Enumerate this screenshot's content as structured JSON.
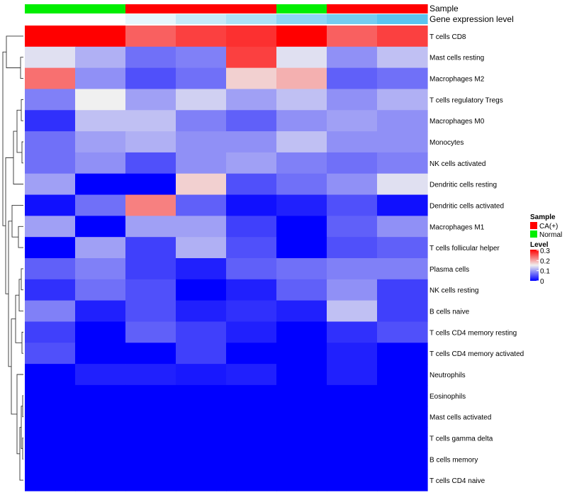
{
  "chart_data": {
    "type": "heatmap",
    "annotation_titles": {
      "sample": "Sample",
      "gene_expression": "Gene expression level"
    },
    "sample_annotation": [
      "Normal",
      "Normal",
      "CA(+)",
      "CA(+)",
      "CA(+)",
      "Normal",
      "CA(+)",
      "CA(+)"
    ],
    "gene_expression_annotation": [
      0.0,
      0.0,
      0.15,
      0.35,
      0.5,
      0.7,
      0.85,
      1.0
    ],
    "rows": [
      "T cells CD8",
      "Mast cells resting",
      "Macrophages M2",
      "T cells regulatory  Tregs",
      "Macrophages M0",
      "Monocytes",
      "NK cells activated",
      "Dendritic cells resting",
      "Dendritic cells activated",
      "Macrophages M1",
      "T cells follicular helper",
      "Plasma cells",
      "NK cells resting",
      "B cells naive",
      "T cells CD4 memory resting",
      "T cells CD4 memory activated",
      "Neutrophils",
      "Eosinophils",
      "Mast cells activated",
      "T cells gamma delta",
      "B cells memory",
      "T cells CD4 naive"
    ],
    "values": [
      [
        0.3,
        0.3,
        0.24,
        0.26,
        0.27,
        0.3,
        0.24,
        0.26
      ],
      [
        0.14,
        0.11,
        0.07,
        0.08,
        0.26,
        0.14,
        0.09,
        0.12
      ],
      [
        0.23,
        0.09,
        0.05,
        0.07,
        0.17,
        0.19,
        0.06,
        0.07
      ],
      [
        0.08,
        0.15,
        0.1,
        0.13,
        0.1,
        0.12,
        0.09,
        0.11
      ],
      [
        0.03,
        0.12,
        0.12,
        0.08,
        0.06,
        0.09,
        0.1,
        0.09
      ],
      [
        0.07,
        0.1,
        0.11,
        0.09,
        0.09,
        0.12,
        0.09,
        0.09
      ],
      [
        0.07,
        0.09,
        0.05,
        0.09,
        0.1,
        0.08,
        0.07,
        0.08
      ],
      [
        0.1,
        0.0,
        0.0,
        0.17,
        0.05,
        0.07,
        0.09,
        0.14
      ],
      [
        0.01,
        0.07,
        0.22,
        0.06,
        0.01,
        0.02,
        0.05,
        0.01
      ],
      [
        0.1,
        0.0,
        0.1,
        0.1,
        0.04,
        0.0,
        0.06,
        0.09
      ],
      [
        0.0,
        0.1,
        0.04,
        0.11,
        0.05,
        0.0,
        0.05,
        0.06
      ],
      [
        0.06,
        0.08,
        0.04,
        0.02,
        0.06,
        0.07,
        0.08,
        0.08
      ],
      [
        0.03,
        0.07,
        0.05,
        0.0,
        0.02,
        0.06,
        0.09,
        0.04
      ],
      [
        0.08,
        0.02,
        0.05,
        0.02,
        0.03,
        0.02,
        0.12,
        0.04
      ],
      [
        0.04,
        0.0,
        0.06,
        0.04,
        0.02,
        0.0,
        0.03,
        0.05
      ],
      [
        0.05,
        0.0,
        0.0,
        0.04,
        0.0,
        0.0,
        0.02,
        0.0
      ],
      [
        0.0,
        0.02,
        0.02,
        0.015,
        0.02,
        0.0,
        0.02,
        0.0
      ],
      [
        0.0,
        0.0,
        0.0,
        0.0,
        0.0,
        0.0,
        0.0,
        0.0
      ],
      [
        0.0,
        0.0,
        0.0,
        0.0,
        0.0,
        0.0,
        0.0,
        0.0
      ],
      [
        0.0,
        0.0,
        0.0,
        0.0,
        0.0,
        0.0,
        0.0,
        0.0
      ],
      [
        0.0,
        0.0,
        0.0,
        0.0,
        0.0,
        0.0,
        0.0,
        0.0
      ],
      [
        0.0,
        0.0,
        0.0,
        0.0,
        0.0,
        0.0,
        0.0,
        0.0
      ]
    ],
    "value_range": [
      0,
      0.3
    ],
    "color_scale": {
      "low": "#0000ff",
      "mid": "#f0f0f0",
      "high": "#ff0000"
    },
    "gene_expression_colors": {
      "low": "#ffffff",
      "high": "#5bc4ef"
    },
    "sample_colors": {
      "CA(+)": "#ff0000",
      "Normal": "#00ee00"
    },
    "legend": {
      "sample_title": "Sample",
      "sample_entries": [
        "CA(+)",
        "Normal"
      ],
      "level_title": "Level",
      "level_ticks": [
        "0.3",
        "0.2",
        "0.1",
        "0"
      ],
      "position": "right"
    },
    "row_dendrogram": true
  }
}
